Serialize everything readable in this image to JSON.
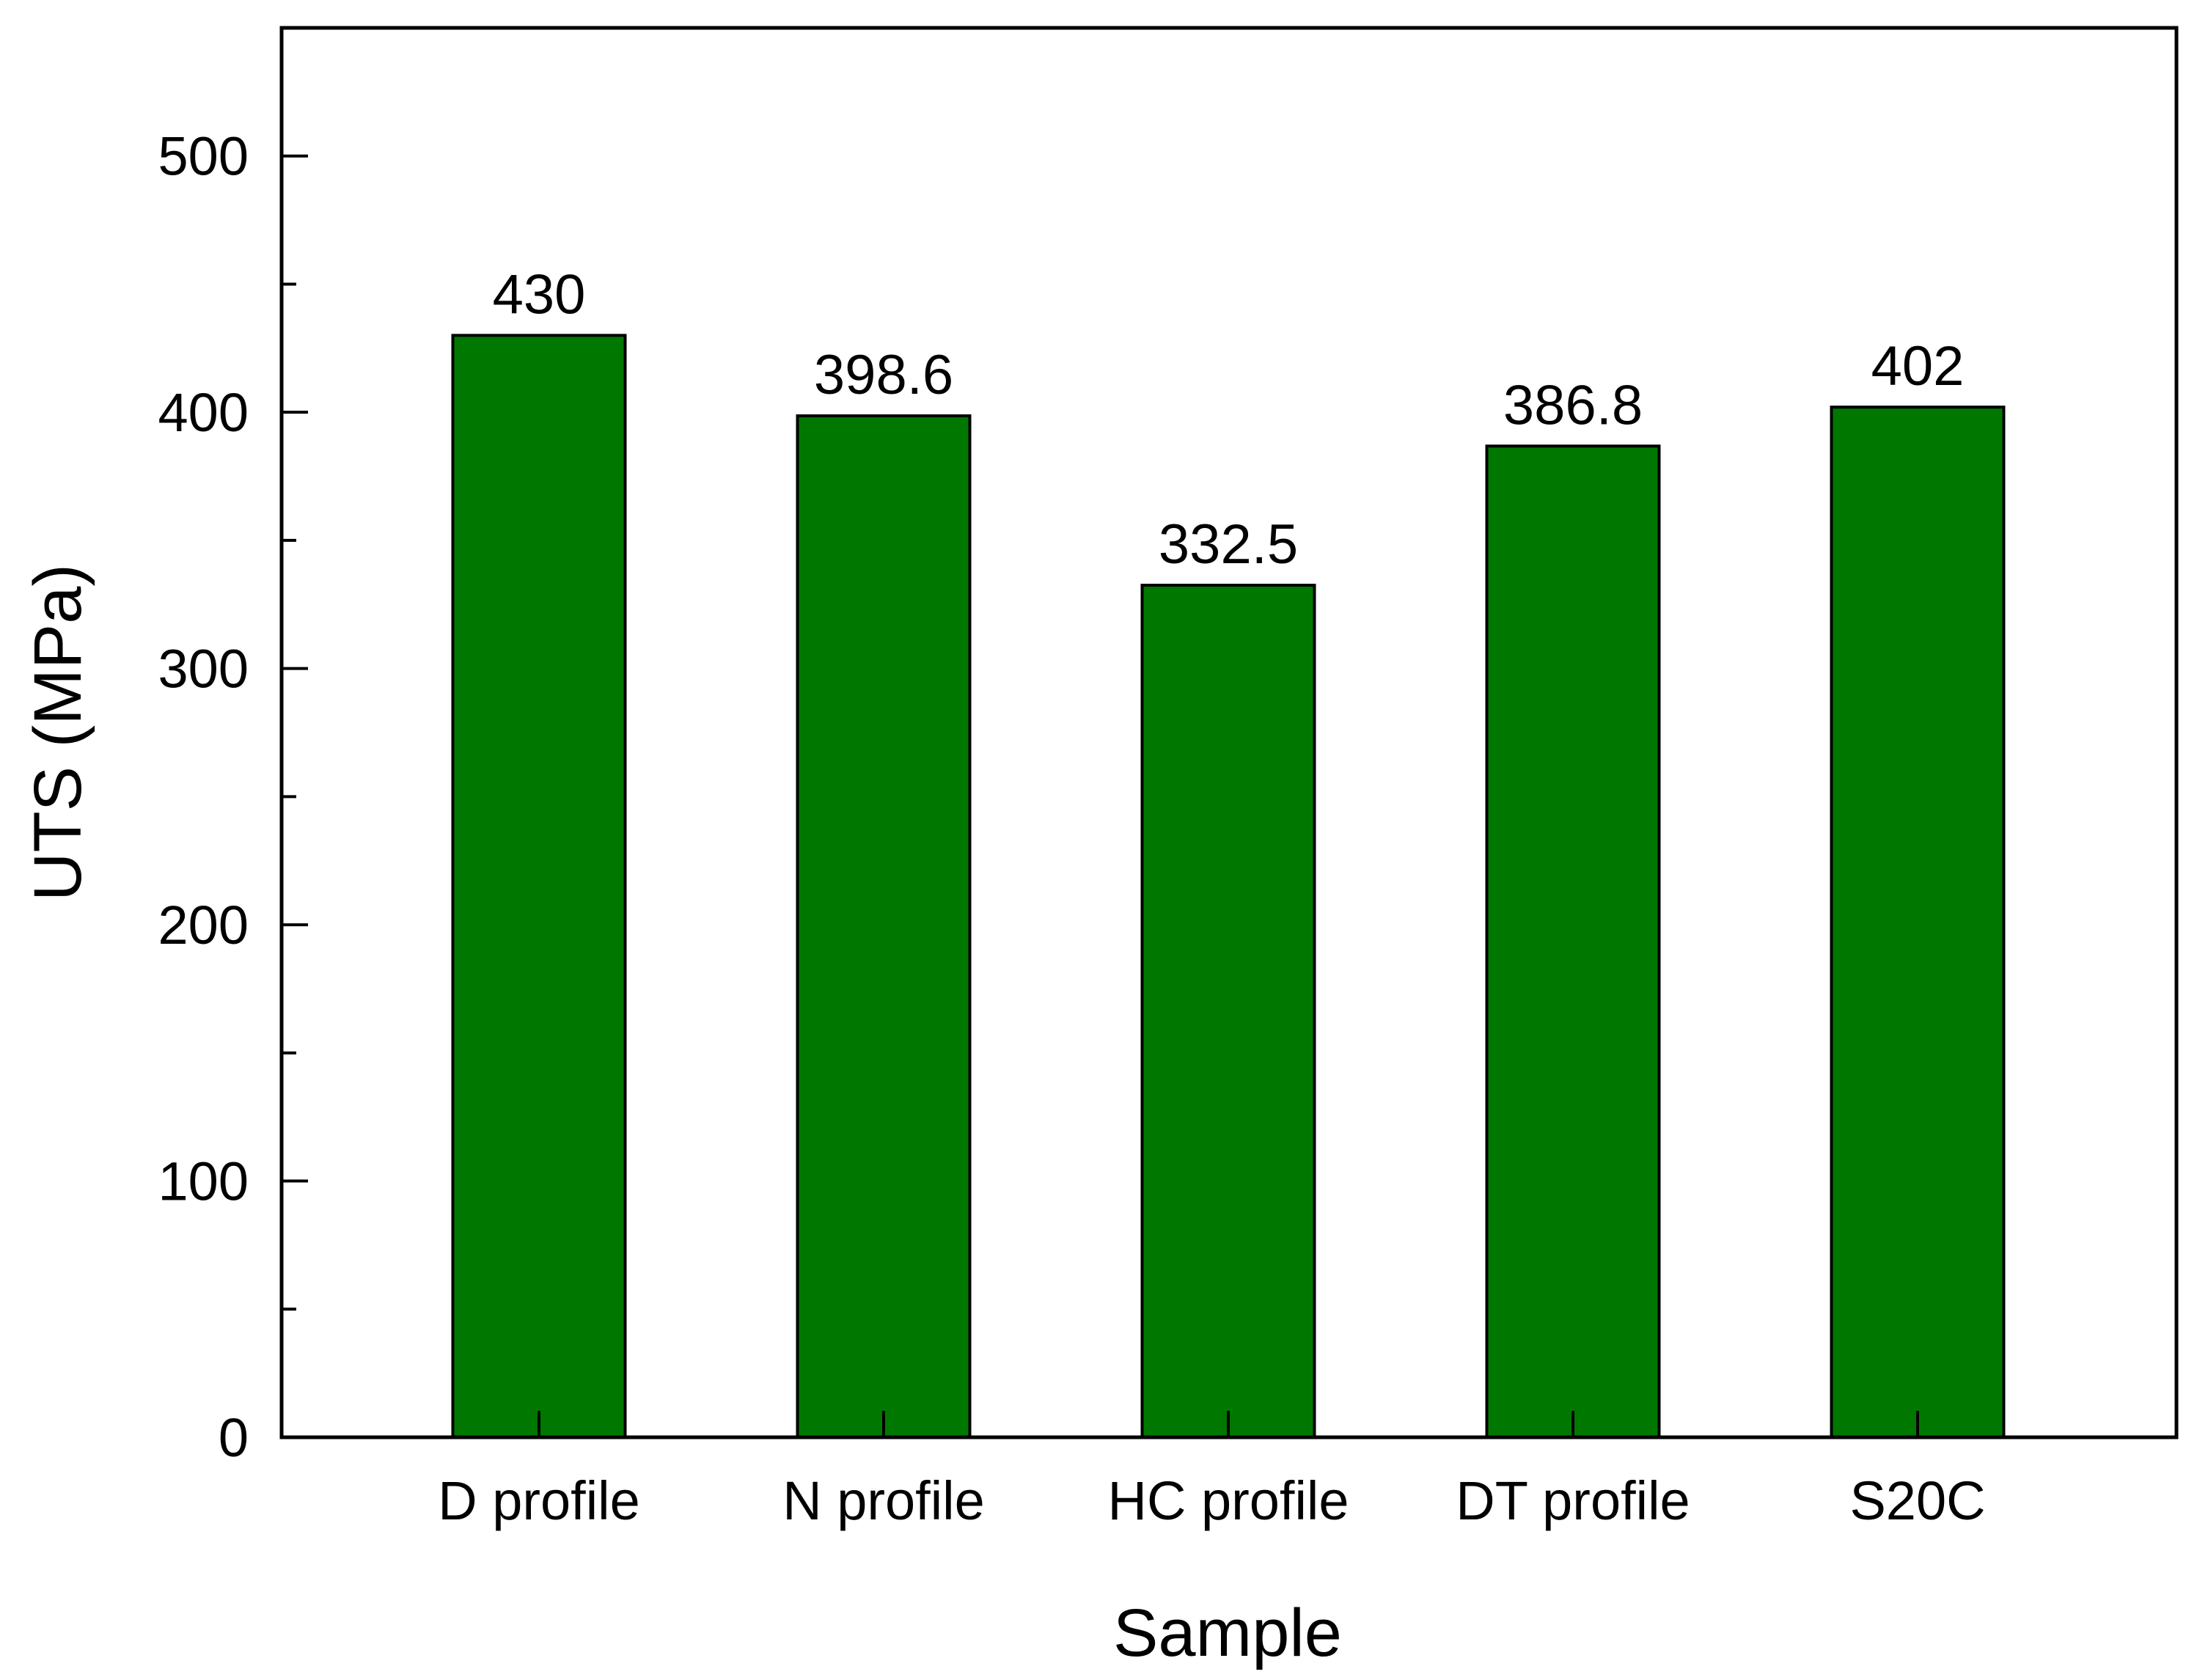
{
  "chart_data": {
    "type": "bar",
    "title": "",
    "xlabel": "Sample",
    "ylabel": "UTS (MPa)",
    "categories": [
      "D profile",
      "N profile",
      "HC profile",
      "DT profile",
      "S20C"
    ],
    "values": [
      430,
      398.6,
      332.5,
      386.8,
      402
    ],
    "data_labels": [
      "430",
      "398.6",
      "332.5",
      "386.8",
      "402"
    ],
    "ylim": [
      0,
      550
    ],
    "y_ticks": [
      0,
      100,
      200,
      300,
      400,
      500
    ],
    "y_tick_labels": [
      "0",
      "100",
      "200",
      "300",
      "400",
      "500"
    ],
    "y_minor_ticks": [
      50,
      150,
      250,
      350,
      450
    ],
    "grid": false,
    "legend": "none",
    "bar_color": "#007800",
    "bar_edge_color": "#000000"
  }
}
